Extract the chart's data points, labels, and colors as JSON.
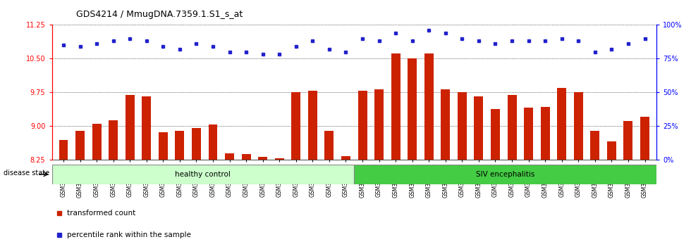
{
  "title": "GDS4214 / MmugDNA.7359.1.S1_s_at",
  "samples": [
    "GSM347802",
    "GSM347803",
    "GSM347810",
    "GSM347811",
    "GSM347812",
    "GSM347813",
    "GSM347814",
    "GSM347815",
    "GSM347816",
    "GSM347817",
    "GSM347818",
    "GSM347820",
    "GSM347821",
    "GSM347822",
    "GSM347825",
    "GSM347826",
    "GSM347827",
    "GSM347828",
    "GSM347800",
    "GSM347801",
    "GSM347804",
    "GSM347805",
    "GSM347806",
    "GSM347807",
    "GSM347808",
    "GSM347809",
    "GSM347823",
    "GSM347824",
    "GSM347829",
    "GSM347830",
    "GSM347831",
    "GSM347832",
    "GSM347833",
    "GSM347834",
    "GSM347835",
    "GSM347836"
  ],
  "bar_values": [
    8.68,
    8.88,
    9.05,
    9.12,
    9.68,
    9.65,
    8.85,
    8.88,
    8.95,
    9.02,
    8.38,
    8.37,
    8.3,
    8.28,
    9.75,
    9.78,
    8.88,
    8.32,
    9.78,
    9.82,
    10.62,
    10.5,
    10.62,
    9.82,
    9.75,
    9.65,
    9.38,
    9.68,
    9.4,
    9.42,
    9.85,
    9.75,
    8.88,
    8.65,
    9.1,
    9.2
  ],
  "percentile_values": [
    85,
    84,
    86,
    88,
    90,
    88,
    84,
    82,
    86,
    84,
    80,
    80,
    78,
    78,
    84,
    88,
    82,
    80,
    90,
    88,
    94,
    88,
    96,
    94,
    90,
    88,
    86,
    88,
    88,
    88,
    90,
    88,
    80,
    82,
    86,
    90
  ],
  "healthy_count": 18,
  "ylim_left": [
    8.25,
    11.25
  ],
  "ylim_right": [
    0,
    100
  ],
  "yticks_left": [
    8.25,
    9.0,
    9.75,
    10.5,
    11.25
  ],
  "yticks_right": [
    0,
    25,
    50,
    75,
    100
  ],
  "bar_color": "#cc2200",
  "dot_color": "#2222cc",
  "healthy_color": "#ccffcc",
  "siv_color": "#44cc44",
  "background_color": "#ffffff",
  "bar_width": 0.55
}
